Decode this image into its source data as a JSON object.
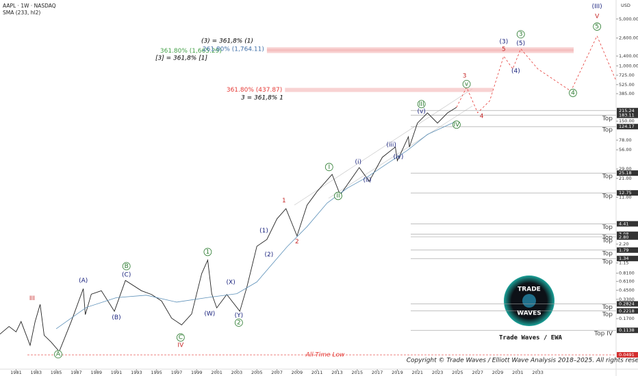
{
  "header": {
    "symbol": "AAPL · 1W · NASDAQ",
    "indicator": "SMA (233, hl2)",
    "currency": "USD"
  },
  "chart_data": {
    "type": "line",
    "log_scale": true,
    "xlim": [
      1979.4,
      2040.8
    ],
    "xticks": [
      1981,
      1983,
      1985,
      1987,
      1989,
      1991,
      1993,
      1995,
      1997,
      1999,
      2001,
      2003,
      2005,
      2007,
      2009,
      2011,
      2013,
      2015,
      2017,
      2019,
      2021,
      2023,
      2025,
      2027,
      2029,
      2031,
      2033
    ],
    "ylim": [
      0.03,
      9600
    ],
    "yticks": [
      {
        "value": 5000,
        "label": "5,000.00"
      },
      {
        "value": 2600,
        "label": "2,600.00"
      },
      {
        "value": 1400,
        "label": "1,400.00"
      },
      {
        "value": 1000,
        "label": "1,000.00"
      },
      {
        "value": 725,
        "label": "725.00"
      },
      {
        "value": 525,
        "label": "525.00"
      },
      {
        "value": 385,
        "label": "385.00"
      },
      {
        "value": 150,
        "label": "150.00"
      },
      {
        "value": 78,
        "label": "78.00"
      },
      {
        "value": 56,
        "label": "56.00"
      },
      {
        "value": 29,
        "label": "29.00"
      },
      {
        "value": 21,
        "label": "21.00"
      },
      {
        "value": 11,
        "label": "11.00"
      },
      {
        "value": 2.2,
        "label": "2.20"
      },
      {
        "value": 1.15,
        "label": "1.15"
      },
      {
        "value": 0.81,
        "label": "0.8100"
      },
      {
        "value": 0.61,
        "label": "0.6100"
      },
      {
        "value": 0.45,
        "label": "0.4500"
      },
      {
        "value": 0.33,
        "label": "0.3300"
      },
      {
        "value": 0.17,
        "label": "0.1700"
      }
    ],
    "series": [
      {
        "color": "#222222",
        "x": [
          1979.4,
          1980.3,
          1981.0,
          1981.5,
          1982.4,
          1982.9,
          1983.4,
          1983.8,
          1984.5,
          1985.3,
          1986.5,
          1987.7,
          1987.9,
          1988.5,
          1989.5,
          1990.8,
          1991.9,
          1993.5,
          1994.5,
          1995.5,
          1996.5,
          1997.5,
          1998.5,
          1999.5,
          2000.1,
          2000.5,
          2001.0,
          2002.0,
          2003.3,
          2004.0,
          2005.0,
          2006.0,
          2007.0,
          2007.9,
          2009.0,
          2010.0,
          2011.0,
          2012.5,
          2013.3,
          2015.2,
          2016.2,
          2017.5,
          2018.8,
          2019.0,
          2020.1,
          2020.2,
          2021.0,
          2022.0,
          2023.0,
          2024.0,
          2024.9
        ],
        "values": [
          0.1,
          0.13,
          0.108,
          0.154,
          0.068,
          0.154,
          0.277,
          0.096,
          0.076,
          0.055,
          0.154,
          0.476,
          0.195,
          0.394,
          0.443,
          0.219,
          0.631,
          0.443,
          0.39,
          0.312,
          0.173,
          0.137,
          0.2,
          0.797,
          1.27,
          0.4,
          0.246,
          0.39,
          0.219,
          0.5,
          2.04,
          2.58,
          5.23,
          7.43,
          2.91,
          8.37,
          13.4,
          24.1,
          11.9,
          30.4,
          19.0,
          43.3,
          61.6,
          38.5,
          87.6,
          61.6,
          140,
          199,
          140,
          199,
          241
        ]
      },
      {
        "color": "#5a8fb8",
        "x": [
          1985,
          1988,
          1991,
          1994,
          1997,
          2000,
          2003,
          2005,
          2008,
          2010,
          2012,
          2014,
          2016,
          2018,
          2020,
          2022,
          2024.9
        ],
        "values": [
          0.12,
          0.25,
          0.35,
          0.38,
          0.3,
          0.35,
          0.4,
          0.6,
          2.0,
          4,
          9,
          15,
          22,
          35,
          55,
          95,
          150
        ]
      },
      {
        "color": "#e53935",
        "dashed": true,
        "x": [
          2024.9,
          2025.9,
          2027.0,
          2028.2,
          2029.6,
          2030.5,
          2031.3,
          2033.0,
          2036.3,
          2038.9,
          2040.8
        ],
        "values": [
          241,
          480,
          200,
          300,
          1400,
          900,
          1800,
          900,
          420,
          2800,
          600
        ]
      }
    ],
    "fibs": [
      {
        "value": 1665.29,
        "label": "361.80% (1,665.29)",
        "color": "#43a047",
        "x_start": 2006.0
      },
      {
        "value": 1764.11,
        "label": "261.80% (1,764.11)",
        "color": "#3f6fa8",
        "x_start": 2006.0
      },
      {
        "value": 437.87,
        "label": "361.80% (437.87)",
        "color": "#e53935",
        "x_start": 2007.8
      }
    ],
    "fib_notes": [
      "(3) = 361,8% (1)",
      "[3] = 361,8% [1]",
      "3 = 361,8% 1"
    ],
    "levels": [
      {
        "value": 215.24,
        "label": "215.24",
        "current": true
      },
      {
        "value": 183.11,
        "label": "183.11",
        "tag": "Top"
      },
      {
        "value": 124.17,
        "label": "124.17",
        "tag": "Top"
      },
      {
        "value": 25.18,
        "label": "25.18",
        "tag": "Top"
      },
      {
        "value": 12.75,
        "label": "12.75",
        "tag": "Top"
      },
      {
        "value": 4.41,
        "label": "4.41",
        "tag": "Top"
      },
      {
        "value": 3.08,
        "label": "3.08",
        "tag": "Top"
      },
      {
        "value": 2.8,
        "label": "2.80",
        "tag": "Top"
      },
      {
        "value": 1.79,
        "label": "1.79",
        "tag": "Top"
      },
      {
        "value": 1.34,
        "label": "1.34",
        "tag": "Top"
      },
      {
        "value": 0.2824,
        "label": "0.2824",
        "tag": "Top"
      },
      {
        "value": 0.2218,
        "label": "0.2218",
        "tag": "Top"
      },
      {
        "value": 0.1138,
        "label": "0.1138",
        "tag": "Top IV"
      },
      {
        "value": 0.0491,
        "label": "0.0491",
        "tag": "All-Time Low",
        "low": true
      }
    ],
    "annotations": [
      {
        "text": "III",
        "x": 1982.6,
        "y": 0.34,
        "color": "#c62828"
      },
      {
        "text": "A",
        "x": 1985.2,
        "y": 0.05,
        "color": "#2e7d32",
        "circled": true
      },
      {
        "text": "(A)",
        "x": 1987.7,
        "y": 0.63,
        "color": "#1a237e"
      },
      {
        "text": "B",
        "x": 1992.0,
        "y": 1.03,
        "color": "#2e7d32",
        "circled": true
      },
      {
        "text": "(C)",
        "x": 1992.0,
        "y": 0.77,
        "color": "#1a237e"
      },
      {
        "text": "(B)",
        "x": 1991.0,
        "y": 0.176,
        "color": "#1a237e"
      },
      {
        "text": "C",
        "x": 1997.4,
        "y": 0.089,
        "color": "#2e7d32",
        "circled": true
      },
      {
        "text": "IV",
        "x": 1997.4,
        "y": 0.068,
        "color": "#c62828"
      },
      {
        "text": "1",
        "x": 2000.1,
        "y": 1.68,
        "color": "#2e7d32",
        "circled": true
      },
      {
        "text": "(W)",
        "x": 2000.3,
        "y": 0.2,
        "color": "#1a237e"
      },
      {
        "text": "(X)",
        "x": 2002.4,
        "y": 0.59,
        "color": "#1a237e"
      },
      {
        "text": "(Y)",
        "x": 2003.2,
        "y": 0.19,
        "color": "#1a237e"
      },
      {
        "text": "2",
        "x": 2003.2,
        "y": 0.148,
        "color": "#2e7d32",
        "circled": true
      },
      {
        "text": "(1)",
        "x": 2005.7,
        "y": 3.5,
        "color": "#1a237e"
      },
      {
        "text": "(2)",
        "x": 2006.2,
        "y": 1.53,
        "color": "#1a237e"
      },
      {
        "text": "1",
        "x": 2007.7,
        "y": 9.8,
        "color": "#c62828"
      },
      {
        "text": "2",
        "x": 2009.0,
        "y": 2.4,
        "color": "#c62828"
      },
      {
        "text": "I",
        "x": 2012.2,
        "y": 31,
        "color": "#2e7d32",
        "circled": true
      },
      {
        "text": "II",
        "x": 2013.1,
        "y": 11.5,
        "color": "#2e7d32",
        "circled": true
      },
      {
        "text": "(i)",
        "x": 2015.1,
        "y": 37,
        "color": "#1a237e"
      },
      {
        "text": "(ii)",
        "x": 2016.0,
        "y": 19.8,
        "color": "#1a237e"
      },
      {
        "text": "(iii)",
        "x": 2018.4,
        "y": 66,
        "color": "#1a237e"
      },
      {
        "text": "(iv)",
        "x": 2019.1,
        "y": 44,
        "color": "#1a237e"
      },
      {
        "text": "III",
        "x": 2021.4,
        "y": 269,
        "color": "#2e7d32",
        "circled": true
      },
      {
        "text": "(v)",
        "x": 2021.4,
        "y": 210,
        "color": "#1a237e"
      },
      {
        "text": "IV",
        "x": 2024.9,
        "y": 133,
        "color": "#2e7d32",
        "circled": true
      },
      {
        "text": "v",
        "x": 2025.9,
        "y": 535,
        "color": "#2e7d32",
        "circled": true
      },
      {
        "text": "3",
        "x": 2025.7,
        "y": 710,
        "color": "#c62828"
      },
      {
        "text": "4",
        "x": 2027.4,
        "y": 177,
        "color": "#c62828"
      },
      {
        "text": "(3)",
        "x": 2029.6,
        "y": 2295,
        "color": "#1a237e"
      },
      {
        "text": "5",
        "x": 2029.6,
        "y": 1770,
        "color": "#c62828"
      },
      {
        "text": "3",
        "x": 2031.3,
        "y": 2960,
        "color": "#2e7d32",
        "circled": true
      },
      {
        "text": "(5)",
        "x": 2031.3,
        "y": 2150,
        "color": "#1a237e"
      },
      {
        "text": "(4)",
        "x": 2030.8,
        "y": 837,
        "color": "#1a237e"
      },
      {
        "text": "4",
        "x": 2036.5,
        "y": 395,
        "color": "#2e7d32",
        "circled": true
      },
      {
        "text": "5",
        "x": 2038.9,
        "y": 3850,
        "color": "#2e7d32",
        "circled": true
      },
      {
        "text": "V",
        "x": 2038.9,
        "y": 5470,
        "color": "#c62828"
      },
      {
        "text": "(III)",
        "x": 2038.9,
        "y": 7680,
        "color": "#1a237e"
      }
    ]
  },
  "branding": {
    "logo_top": "TRADE",
    "logo_bottom": "WAVES",
    "name": "Trade Waves / EWA",
    "copyright": "Copyright © Trade Waves / Elliott Wave Analysis 2018–2025. All rights reserved."
  }
}
